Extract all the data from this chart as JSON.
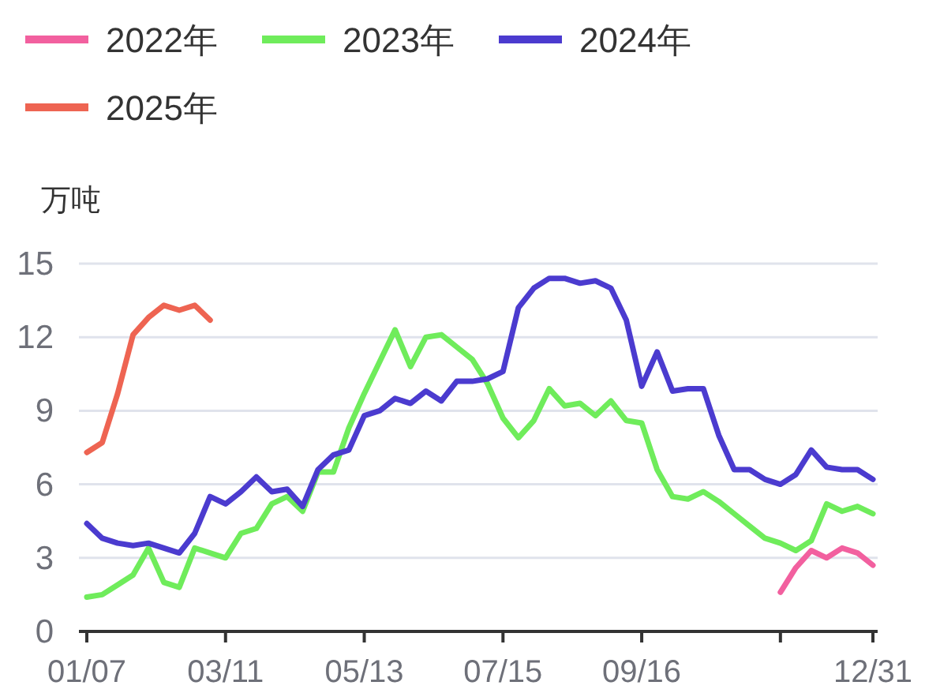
{
  "chart_data": {
    "type": "line",
    "ylabel": "万吨",
    "categories": [
      "01/07",
      null,
      null,
      null,
      null,
      null,
      null,
      null,
      null,
      "03/11",
      null,
      null,
      null,
      null,
      null,
      null,
      null,
      null,
      "05/13",
      null,
      null,
      null,
      null,
      null,
      null,
      null,
      null,
      "07/15",
      null,
      null,
      null,
      null,
      null,
      null,
      null,
      null,
      "09/16",
      null,
      null,
      null,
      null,
      null,
      null,
      null,
      null,
      null,
      null,
      null,
      null,
      null,
      null,
      "12/31"
    ],
    "series": [
      {
        "name": "2022年",
        "color": "#f2609f",
        "values": [
          null,
          null,
          null,
          null,
          null,
          null,
          null,
          null,
          null,
          null,
          null,
          null,
          null,
          null,
          null,
          null,
          null,
          null,
          null,
          null,
          null,
          null,
          null,
          null,
          null,
          null,
          null,
          null,
          null,
          null,
          null,
          null,
          null,
          null,
          null,
          null,
          null,
          null,
          null,
          null,
          null,
          null,
          null,
          null,
          null,
          1.6,
          2.6,
          3.3,
          3.0,
          3.4,
          3.2,
          2.7
        ]
      },
      {
        "name": "2023年",
        "color": "#6fec5b",
        "values": [
          1.4,
          1.5,
          1.9,
          2.3,
          3.4,
          2.0,
          1.8,
          3.4,
          3.2,
          3.0,
          4.0,
          4.2,
          5.2,
          5.5,
          4.9,
          6.5,
          6.5,
          8.3,
          9.7,
          11.0,
          12.3,
          10.8,
          12.0,
          12.1,
          11.6,
          11.1,
          10.1,
          8.7,
          7.9,
          8.6,
          9.9,
          9.2,
          9.3,
          8.8,
          9.4,
          8.6,
          8.5,
          6.6,
          5.5,
          5.4,
          5.7,
          5.3,
          4.8,
          4.3,
          3.8,
          3.6,
          3.3,
          3.7,
          5.2,
          4.9,
          5.1,
          4.8
        ]
      },
      {
        "name": "2024年",
        "color": "#4b3bcf",
        "values": [
          4.4,
          3.8,
          3.6,
          3.5,
          3.6,
          3.4,
          3.2,
          4.0,
          5.5,
          5.2,
          5.7,
          6.3,
          5.7,
          5.8,
          5.1,
          6.6,
          7.2,
          7.4,
          8.8,
          9.0,
          9.5,
          9.3,
          9.8,
          9.4,
          10.2,
          10.2,
          10.3,
          10.6,
          13.2,
          14.0,
          14.4,
          14.4,
          14.2,
          14.3,
          14.0,
          12.7,
          10.0,
          11.4,
          9.8,
          9.9,
          9.9,
          8.0,
          6.6,
          6.6,
          6.2,
          6.0,
          6.4,
          7.4,
          6.7,
          6.6,
          6.6,
          6.2
        ]
      },
      {
        "name": "2025年",
        "color": "#ee6452",
        "values": [
          7.3,
          7.7,
          9.7,
          12.1,
          12.8,
          13.3,
          13.1,
          13.3,
          12.7,
          null,
          null,
          null,
          null,
          null,
          null,
          null,
          null,
          null,
          null,
          null,
          null,
          null,
          null,
          null,
          null,
          null,
          null,
          null,
          null,
          null,
          null,
          null,
          null,
          null,
          null,
          null,
          null,
          null,
          null,
          null,
          null,
          null,
          null,
          null,
          null,
          null,
          null,
          null,
          null,
          null,
          null,
          null
        ]
      }
    ],
    "ylim": [
      0,
      15
    ],
    "yticks": [
      0,
      3,
      6,
      9,
      12,
      15
    ],
    "grid": "y",
    "legend": "top left"
  }
}
